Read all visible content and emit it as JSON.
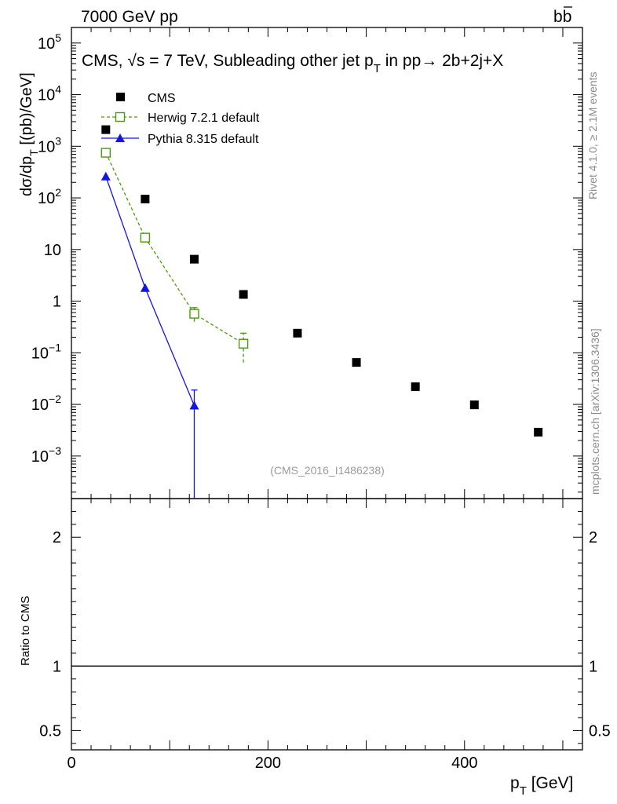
{
  "header": {
    "left": "7000 GeV pp",
    "right": "b",
    "right_bar": "b"
  },
  "side_labels": {
    "rivet": "Rivet 4.1.0, ≥ 2.1M events",
    "mcplots": "mcplots.cern.ch [arXiv:1306.3436]"
  },
  "chart_data": {
    "type": "scatter",
    "title_parts": {
      "prefix": "CMS, ",
      "sqrt": "√",
      "s": "s",
      "mid": " = 7 TeV, Subleading other jet p",
      "sub": "T",
      "suffix": " in pp→  2b+2j+X"
    },
    "watermark": "(CMS_2016_I1486238)",
    "ylabel_main": "dσ/dp",
    "ylabel_main_sub": "T",
    "ylabel_main_unit": " [(pb)/GeV]",
    "ylabel_ratio": "Ratio to CMS",
    "xlabel": "p",
    "xlabel_sub": "T",
    "xlabel_unit": " [GeV]",
    "xlim": [
      0,
      520
    ],
    "ylim_main": [
      0.00015,
      200000
    ],
    "ylim_ratio": [
      0.35,
      2.3
    ],
    "x_ticks": [
      {
        "v": 0,
        "label": "0"
      },
      {
        "v": 200,
        "label": "200"
      },
      {
        "v": 400,
        "label": "400"
      }
    ],
    "y_ticks_main": [
      {
        "v": 100000,
        "base": "10",
        "exp": "5"
      },
      {
        "v": 10000,
        "base": "10",
        "exp": "4"
      },
      {
        "v": 1000,
        "base": "10",
        "exp": "3"
      },
      {
        "v": 100,
        "base": "10",
        "exp": "2"
      },
      {
        "v": 10,
        "base": "10",
        "exp": ""
      },
      {
        "v": 1,
        "base": "1",
        "exp": ""
      },
      {
        "v": 0.1,
        "base": "10",
        "exp": "−1"
      },
      {
        "v": 0.01,
        "base": "10",
        "exp": "−2"
      },
      {
        "v": 0.001,
        "base": "10",
        "exp": "−3"
      }
    ],
    "y_ticks_ratio": [
      {
        "v": 2,
        "label": "2"
      },
      {
        "v": 1,
        "label": "1"
      },
      {
        "v": 0.5,
        "label": "0.5"
      }
    ],
    "series": [
      {
        "name": "CMS",
        "legend": "CMS",
        "color": "#000000",
        "marker": "square-filled",
        "line": "none",
        "x": [
          35,
          75,
          125,
          175,
          230,
          290,
          350,
          410,
          475
        ],
        "y": [
          2100,
          95,
          6.5,
          1.35,
          0.24,
          0.065,
          0.022,
          0.0098,
          0.0029
        ],
        "yerr_low": [
          null,
          null,
          null,
          null,
          null,
          null,
          null,
          null,
          null
        ],
        "yerr_high": [
          null,
          null,
          null,
          null,
          null,
          null,
          null,
          null,
          null
        ]
      },
      {
        "name": "Herwig",
        "legend": "Herwig 7.2.1 default",
        "color": "#4a9a0a",
        "marker": "square-open",
        "line": "dashed",
        "x": [
          35,
          75,
          125,
          175
        ],
        "y": [
          750,
          17,
          0.57,
          0.15
        ],
        "yerr_low": [
          null,
          null,
          0.4,
          0.065
        ],
        "yerr_high": [
          null,
          null,
          0.75,
          0.24
        ]
      },
      {
        "name": "Pythia",
        "legend": "Pythia 8.315 default",
        "color": "#1414e6",
        "marker": "triangle-filled",
        "line": "solid",
        "x": [
          35,
          75,
          125
        ],
        "y": [
          260,
          1.8,
          0.0095
        ],
        "yerr_low": [
          null,
          null,
          0.00015
        ],
        "yerr_high": [
          null,
          null,
          0.019
        ]
      }
    ],
    "ratio_reference": 1
  }
}
